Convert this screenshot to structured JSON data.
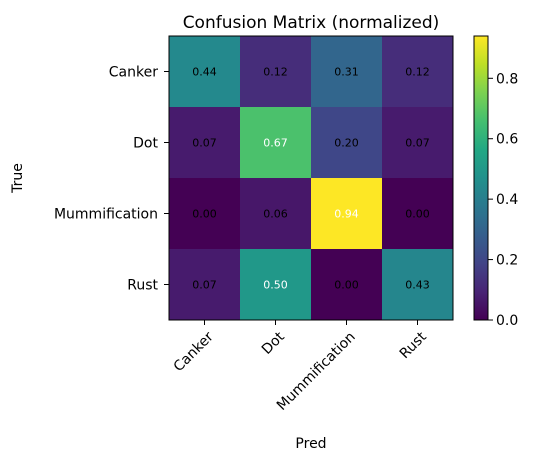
{
  "chart_data": {
    "type": "heatmap",
    "title": "Confusion Matrix (normalized)",
    "xlabel": "Pred",
    "ylabel": "True",
    "x_categories": [
      "Canker",
      "Dot",
      "Mummification",
      "Rust"
    ],
    "y_categories": [
      "Canker",
      "Dot",
      "Mummification",
      "Rust"
    ],
    "values": [
      [
        0.44,
        0.12,
        0.31,
        0.12
      ],
      [
        0.07,
        0.67,
        0.2,
        0.07
      ],
      [
        0.0,
        0.06,
        0.94,
        0.0
      ],
      [
        0.07,
        0.5,
        0.0,
        0.43
      ]
    ],
    "cell_labels": [
      [
        "0.44",
        "0.12",
        "0.31",
        "0.12"
      ],
      [
        "0.07",
        "0.67",
        "0.20",
        "0.07"
      ],
      [
        "0.00",
        "0.06",
        "0.94",
        "0.00"
      ],
      [
        "0.07",
        "0.50",
        "0.00",
        "0.43"
      ]
    ],
    "colormap": "viridis",
    "vmin": 0.0,
    "vmax": 0.94,
    "colorbar_ticks": [
      0.0,
      0.2,
      0.4,
      0.6,
      0.8
    ],
    "colorbar_tick_labels": [
      "0.0",
      "0.2",
      "0.4",
      "0.6",
      "0.8"
    ],
    "label_color_dark": "#000000",
    "label_color_light": "#ffffff",
    "light_label_threshold": 0.47
  }
}
